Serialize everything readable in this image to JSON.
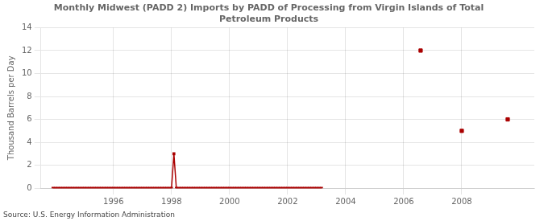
{
  "chart_data": {
    "type": "scatter",
    "title": "Monthly Midwest (PADD 2) Imports by PADD of Processing from Virgin Islands of Total\nPetroleum Products",
    "ylabel": "Thousand Barrels per Day",
    "annotations": [
      "Source: U.S. Energy Information Administration"
    ],
    "xlim": [
      1993.5,
      2010.5
    ],
    "ylim": [
      0,
      14
    ],
    "xticks": [
      1996,
      1998,
      2000,
      2002,
      2004,
      2006,
      2008
    ],
    "yticks": [
      0,
      2,
      4,
      6,
      8,
      10,
      12,
      14
    ],
    "grid": true,
    "series": [
      {
        "type": "line",
        "color": "#aa0000",
        "marker": "square",
        "x": [
          1993.917,
          1994.0,
          1994.083,
          1994.167,
          1994.25,
          1994.333,
          1994.417,
          1994.5,
          1994.583,
          1994.667,
          1994.75,
          1994.833,
          1994.917,
          1995.0,
          1995.083,
          1995.167,
          1995.25,
          1995.333,
          1995.417,
          1995.5,
          1995.583,
          1995.667,
          1995.75,
          1995.833,
          1995.917,
          1996.0,
          1996.083,
          1996.167,
          1996.25,
          1996.333,
          1996.417,
          1996.5,
          1996.583,
          1996.667,
          1996.75,
          1996.833,
          1996.917,
          1997.0,
          1997.083,
          1997.167,
          1997.25,
          1997.333,
          1997.417,
          1997.5,
          1997.583,
          1997.667,
          1997.75,
          1997.833,
          1997.917,
          1998.0,
          1998.083,
          1998.167,
          1998.25,
          1998.333,
          1998.417,
          1998.5,
          1998.583,
          1998.667,
          1998.75,
          1998.833,
          1998.917,
          1999.0,
          1999.083,
          1999.167,
          1999.25,
          1999.333,
          1999.417,
          1999.5,
          1999.583,
          1999.667,
          1999.75,
          1999.833,
          1999.917,
          2000.0,
          2000.083,
          2000.167,
          2000.25,
          2000.333,
          2000.417,
          2000.5,
          2000.583,
          2000.667,
          2000.75,
          2000.833,
          2000.917,
          2001.0,
          2001.083,
          2001.167,
          2001.25,
          2001.333,
          2001.417,
          2001.5,
          2001.583,
          2001.667,
          2001.75,
          2001.833,
          2001.917,
          2002.0,
          2002.083,
          2002.167,
          2002.25,
          2002.333,
          2002.417,
          2002.5,
          2002.583,
          2002.667,
          2002.75,
          2002.833,
          2002.917,
          2003.0,
          2003.083,
          2003.167
        ],
        "values": [
          0,
          0,
          0,
          0,
          0,
          0,
          0,
          0,
          0,
          0,
          0,
          0,
          0,
          0,
          0,
          0,
          0,
          0,
          0,
          0,
          0,
          0,
          0,
          0,
          0,
          0,
          0,
          0,
          0,
          0,
          0,
          0,
          0,
          0,
          0,
          0,
          0,
          0,
          0,
          0,
          0,
          0,
          0,
          0,
          0,
          0,
          0,
          0,
          0,
          0,
          3,
          0,
          0,
          0,
          0,
          0,
          0,
          0,
          0,
          0,
          0,
          0,
          0,
          0,
          0,
          0,
          0,
          0,
          0,
          0,
          0,
          0,
          0,
          0,
          0,
          0,
          0,
          0,
          0,
          0,
          0,
          0,
          0,
          0,
          0,
          0,
          0,
          0,
          0,
          0,
          0,
          0,
          0,
          0,
          0,
          0,
          0,
          0,
          0,
          0,
          0,
          0,
          0,
          0,
          0,
          0,
          0,
          0,
          0,
          0,
          0,
          0
        ]
      },
      {
        "type": "scatter",
        "color": "#aa0000",
        "marker": "square",
        "x": [
          2006.583,
          2008.0,
          2009.583
        ],
        "values": [
          12,
          5,
          6
        ]
      }
    ]
  }
}
